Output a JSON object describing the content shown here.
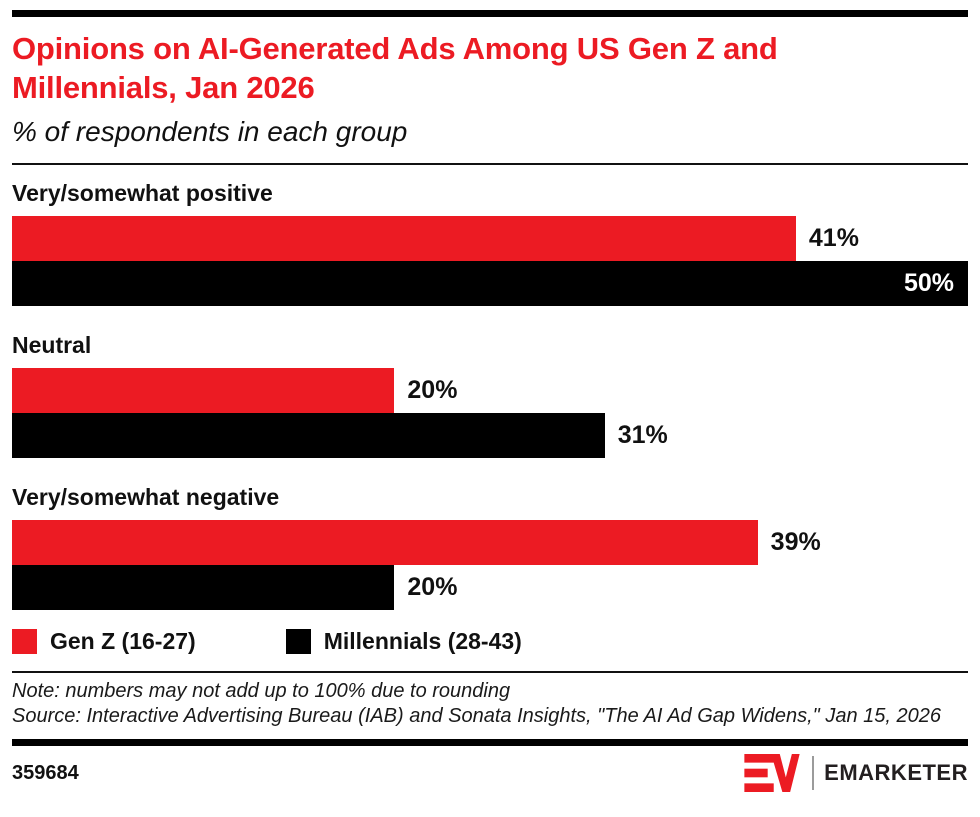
{
  "chart_data": {
    "type": "bar",
    "orientation": "horizontal",
    "unit": "percent",
    "title": "Opinions on AI-Generated Ads Among US Gen Z and Millennials, Jan 2026",
    "subtitle": "% of respondents in each group",
    "categories": [
      "Very/somewhat positive",
      "Neutral",
      "Very/somewhat negative"
    ],
    "series": [
      {
        "name": "Gen Z (16-27)",
        "color": "#EC1B23",
        "values": [
          41,
          20,
          39
        ],
        "labels": [
          "41%",
          "20%",
          "39%"
        ]
      },
      {
        "name": "Millennials (28-43)",
        "color": "#000000",
        "values": [
          50,
          31,
          20
        ],
        "labels": [
          "50%",
          "31%",
          "20%"
        ]
      }
    ],
    "xlim": [
      0,
      50
    ],
    "grid": false,
    "legend_position": "bottom"
  },
  "notes": {
    "note": "Note: numbers may not add up to 100% due to rounding",
    "source": "Source: Interactive Advertising Bureau (IAB) and Sonata Insights, \"The AI Ad Gap Widens,\" Jan 15, 2026"
  },
  "footer": {
    "chart_id": "359684",
    "brand_monogram": "EM",
    "brand_name": "EMARKETER"
  },
  "colors": {
    "accent_red": "#EC1B23",
    "bar_black": "#000000"
  }
}
